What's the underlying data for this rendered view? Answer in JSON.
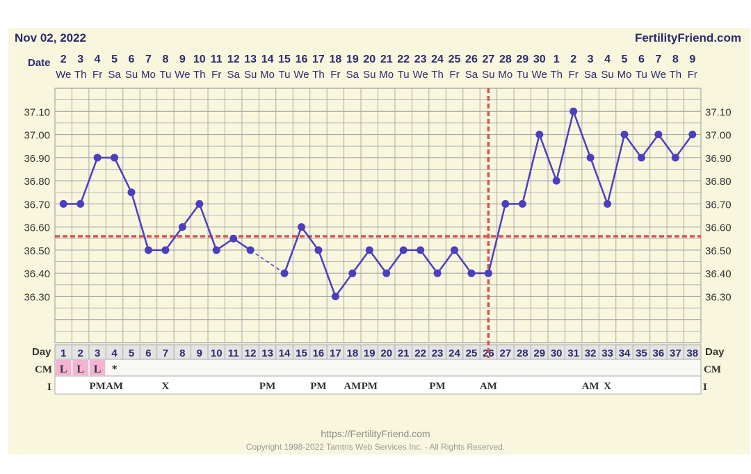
{
  "header": {
    "date": "Nov 02, 2022",
    "site": "FertilityFriend.com"
  },
  "labels": {
    "date_row": "Date",
    "day_row": "Day",
    "cm_row": "CM",
    "i_row": "I"
  },
  "footer": {
    "url": "https://FertilityFriend.com",
    "copyright": "Copyright 1998-2022 Tamtris Web Services Inc. - All Rights Reserved."
  },
  "colors": {
    "line": "#4b3fbf",
    "coverline": "#d9534f",
    "grid": "#a9a9a9",
    "panel": "#f9f6de",
    "header_text": "#2a2a6e",
    "cm_highlight": "#f4b3d3"
  },
  "chart_data": {
    "type": "line",
    "dates": [
      "2",
      "3",
      "4",
      "5",
      "6",
      "7",
      "8",
      "9",
      "10",
      "11",
      "12",
      "13",
      "14",
      "15",
      "16",
      "17",
      "18",
      "19",
      "20",
      "21",
      "22",
      "23",
      "24",
      "25",
      "26",
      "27",
      "28",
      "29",
      "30",
      "1",
      "2",
      "3",
      "4",
      "5",
      "6",
      "7",
      "8",
      "9"
    ],
    "weekdays": [
      "We",
      "Th",
      "Fr",
      "Sa",
      "Su",
      "Mo",
      "Tu",
      "We",
      "Th",
      "Fr",
      "Sa",
      "Su",
      "Mo",
      "Tu",
      "We",
      "Th",
      "Fr",
      "Sa",
      "Su",
      "Mo",
      "Tu",
      "We",
      "Th",
      "Fr",
      "Sa",
      "Su",
      "Mo",
      "Tu",
      "We",
      "Th",
      "Fr",
      "Sa",
      "Su",
      "Mo",
      "Tu",
      "We",
      "Th",
      "Fr"
    ],
    "days": [
      "1",
      "2",
      "3",
      "4",
      "5",
      "6",
      "7",
      "8",
      "9",
      "10",
      "11",
      "12",
      "13",
      "14",
      "15",
      "16",
      "17",
      "18",
      "19",
      "20",
      "21",
      "22",
      "23",
      "24",
      "25",
      "26",
      "27",
      "28",
      "29",
      "30",
      "31",
      "32",
      "33",
      "34",
      "35",
      "36",
      "37",
      "38"
    ],
    "temperatures": [
      36.7,
      36.7,
      36.9,
      36.9,
      36.75,
      36.5,
      36.5,
      36.6,
      36.7,
      36.5,
      36.55,
      36.5,
      null,
      36.4,
      36.6,
      36.5,
      36.3,
      36.4,
      36.5,
      36.4,
      36.5,
      36.5,
      36.4,
      36.5,
      36.4,
      36.4,
      36.7,
      36.7,
      37.0,
      36.8,
      37.1,
      36.9,
      36.7,
      37.0,
      36.9,
      37.0,
      36.9,
      37.0
    ],
    "y_ticks": [
      "36.30",
      "36.40",
      "36.50",
      "36.60",
      "36.70",
      "36.80",
      "36.90",
      "37.00",
      "37.10"
    ],
    "ylim": [
      36.1,
      37.2
    ],
    "coverline": 36.56,
    "ovulation_day": 26,
    "cm": [
      "L",
      "L",
      "L",
      "*",
      "",
      "",
      "",
      "",
      "",
      "",
      "",
      "",
      "",
      "",
      "",
      "",
      "",
      "",
      "",
      "",
      "",
      "",
      "",
      "",
      "",
      "",
      "",
      "",
      "",
      "",
      "",
      "",
      "",
      "",
      "",
      "",
      "",
      ""
    ],
    "cm_highlight_days": [
      1,
      2,
      3
    ],
    "intercourse": [
      "",
      "",
      "PM",
      "AM",
      "",
      "",
      "X",
      "",
      "",
      "",
      "",
      "",
      "PM",
      "",
      "",
      "PM",
      "",
      "AM",
      "PM",
      "",
      "",
      "",
      "PM",
      "",
      "",
      "AM",
      "",
      "",
      "",
      "",
      "",
      "AM",
      "X",
      "",
      "",
      "",
      "",
      ""
    ],
    "grid": true
  }
}
